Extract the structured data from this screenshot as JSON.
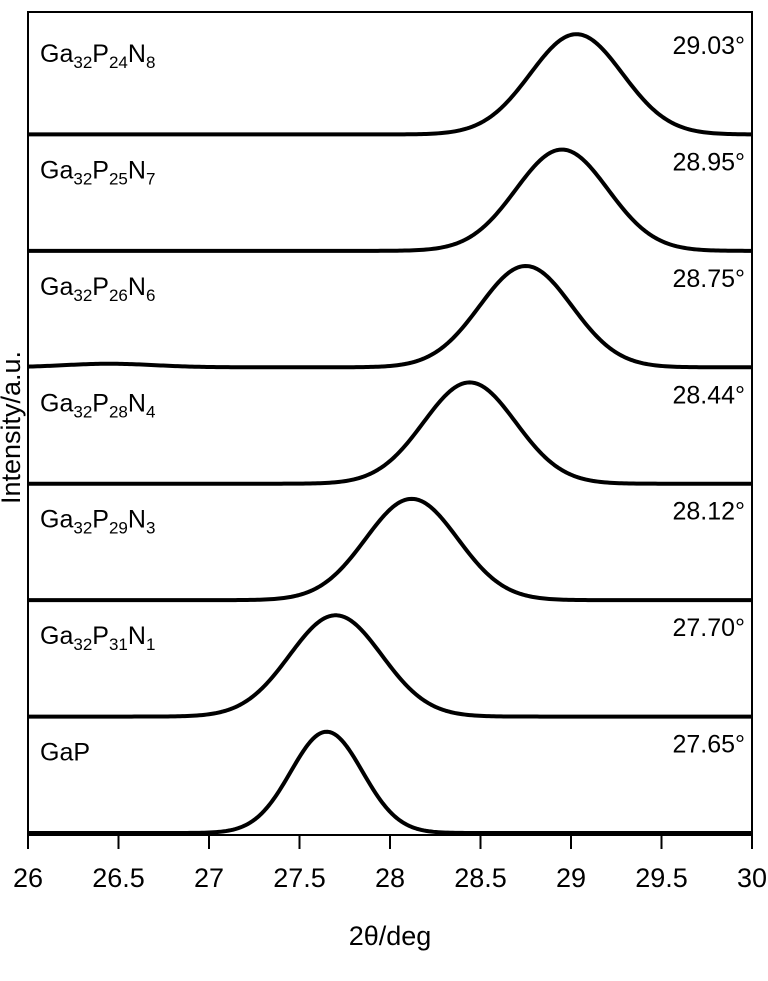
{
  "chart_data": {
    "type": "line",
    "xlabel": "2θ/deg",
    "ylabel": "Intensity/a.u.",
    "xlim": [
      26,
      30
    ],
    "xticks": [
      "26",
      "26.5",
      "27",
      "27.5",
      "28",
      "28.5",
      "29",
      "29.5",
      "30"
    ],
    "grid": false,
    "series": [
      {
        "name": "Ga32P24N8",
        "parts": [
          {
            "t": "Ga",
            "s": ""
          },
          {
            "t": "32",
            "s": "sub"
          },
          {
            "t": "P",
            "s": ""
          },
          {
            "t": "24",
            "s": "sub"
          },
          {
            "t": "N",
            "s": ""
          },
          {
            "t": "8",
            "s": "sub"
          }
        ],
        "peak_label": "29.03°",
        "peak": 29.03,
        "width": 0.36,
        "height": 0.96,
        "baseline_wobble": 0
      },
      {
        "name": "Ga32P25N7",
        "parts": [
          {
            "t": "Ga",
            "s": ""
          },
          {
            "t": "32",
            "s": "sub"
          },
          {
            "t": "P",
            "s": ""
          },
          {
            "t": "25",
            "s": "sub"
          },
          {
            "t": "N",
            "s": ""
          },
          {
            "t": "7",
            "s": "sub"
          }
        ],
        "peak_label": "28.95°",
        "peak": 28.95,
        "width": 0.36,
        "height": 0.97,
        "baseline_wobble": 0
      },
      {
        "name": "Ga32P26N6",
        "parts": [
          {
            "t": "Ga",
            "s": ""
          },
          {
            "t": "32",
            "s": "sub"
          },
          {
            "t": "P",
            "s": ""
          },
          {
            "t": "26",
            "s": "sub"
          },
          {
            "t": "N",
            "s": ""
          },
          {
            "t": "6",
            "s": "sub"
          }
        ],
        "peak_label": "28.75°",
        "peak": 28.75,
        "width": 0.36,
        "height": 0.97,
        "baseline_wobble": 0.035
      },
      {
        "name": "Ga32P28N4",
        "parts": [
          {
            "t": "Ga",
            "s": ""
          },
          {
            "t": "32",
            "s": "sub"
          },
          {
            "t": "P",
            "s": ""
          },
          {
            "t": "28",
            "s": "sub"
          },
          {
            "t": "N",
            "s": ""
          },
          {
            "t": "4",
            "s": "sub"
          }
        ],
        "peak_label": "28.44°",
        "peak": 28.44,
        "width": 0.36,
        "height": 0.97,
        "baseline_wobble": 0
      },
      {
        "name": "Ga32P29N3",
        "parts": [
          {
            "t": "Ga",
            "s": ""
          },
          {
            "t": "32",
            "s": "sub"
          },
          {
            "t": "P",
            "s": ""
          },
          {
            "t": "29",
            "s": "sub"
          },
          {
            "t": "N",
            "s": ""
          },
          {
            "t": "3",
            "s": "sub"
          }
        ],
        "peak_label": "28.12°",
        "peak": 28.12,
        "width": 0.36,
        "height": 0.97,
        "baseline_wobble": 0
      },
      {
        "name": "Ga32P31N1",
        "parts": [
          {
            "t": "Ga",
            "s": ""
          },
          {
            "t": "32",
            "s": "sub"
          },
          {
            "t": "P",
            "s": ""
          },
          {
            "t": "31",
            "s": "sub"
          },
          {
            "t": "N",
            "s": ""
          },
          {
            "t": "1",
            "s": "sub"
          }
        ],
        "peak_label": "27.70°",
        "peak": 27.7,
        "width": 0.36,
        "height": 0.97,
        "baseline_wobble": 0
      },
      {
        "name": "GaP",
        "parts": [
          {
            "t": "GaP",
            "s": ""
          }
        ],
        "peak_label": "27.65°",
        "peak": 27.65,
        "width": 0.28,
        "height": 0.97,
        "baseline_wobble": 0
      }
    ]
  }
}
